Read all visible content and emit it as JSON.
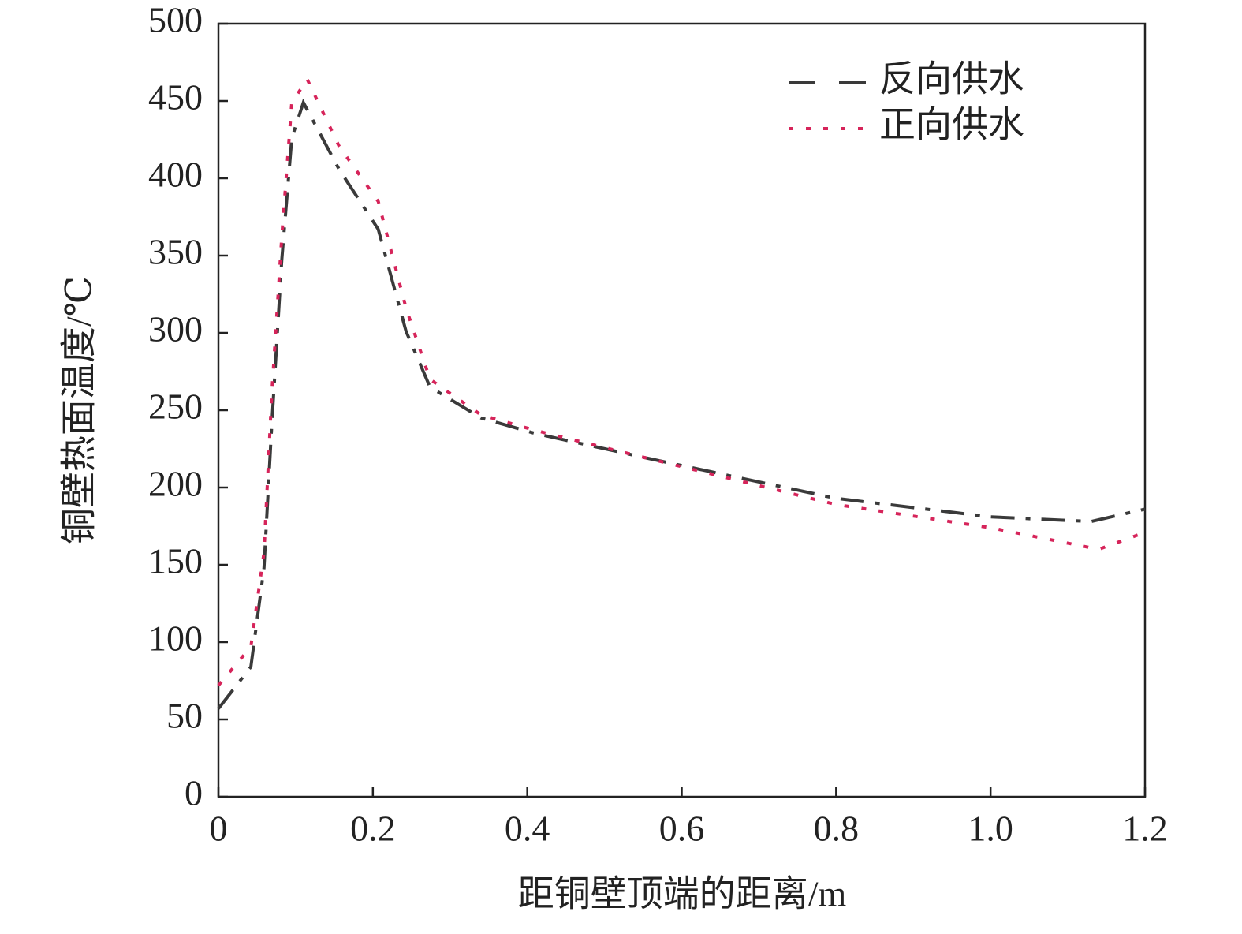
{
  "chart_data": {
    "type": "line",
    "x_label": "距铜壁顶端的距离/m",
    "y_label": "铜壁热面温度/℃",
    "xlim": [
      0,
      1.2
    ],
    "xticks": [
      0,
      0.2,
      0.4,
      0.6,
      0.8,
      {
        "value": 1,
        "label": "1.0"
      },
      1.2
    ],
    "ylim": [
      0,
      500
    ],
    "yticks": [
      0,
      50,
      100,
      150,
      200,
      250,
      300,
      350,
      400,
      450,
      500
    ],
    "legend": "top-right",
    "series": [
      {
        "name": "反向供水",
        "color": "#3a3a3a",
        "style": "dashed",
        "x": [
          0,
          0.042,
          0.059,
          0.069,
          0.082,
          0.095,
          0.11,
          0.156,
          0.207,
          0.243,
          0.274,
          0.34,
          0.41,
          0.555,
          0.8,
          1.0,
          1.13,
          1.2
        ],
        "values": [
          57,
          84,
          148,
          240,
          347,
          426,
          449,
          406,
          367,
          301,
          265,
          245,
          235,
          219,
          193,
          181,
          178,
          186
        ]
      },
      {
        "name": "正向供水",
        "color": "#d6245a",
        "style": "dotted",
        "x": [
          0,
          0.042,
          0.059,
          0.069,
          0.082,
          0.095,
          0.115,
          0.156,
          0.207,
          0.243,
          0.274,
          0.34,
          0.41,
          0.555,
          0.8,
          1.0,
          1.14,
          1.2
        ],
        "values": [
          72,
          97,
          158,
          260,
          362,
          449,
          464,
          421,
          385,
          316,
          270,
          247,
          237,
          219,
          189,
          174,
          160,
          171
        ]
      }
    ]
  }
}
